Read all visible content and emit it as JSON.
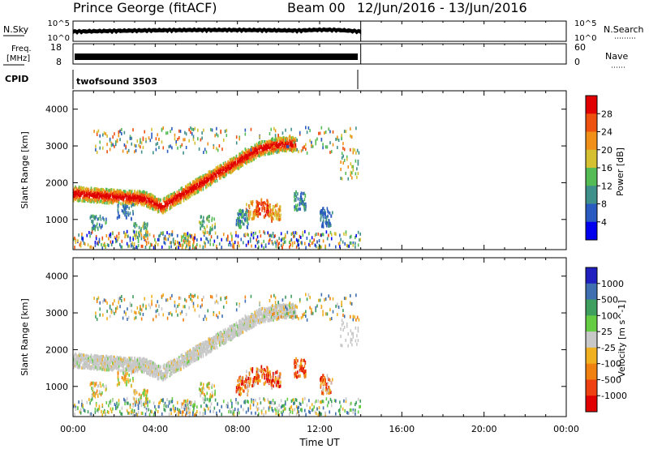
{
  "header": {
    "station": "Prince George (fitACF)",
    "beam": "Beam 00",
    "date_range": "12/Jun/2016 - 13/Jun/2016"
  },
  "panels": {
    "nsky": {
      "label": "N.Sky",
      "ticks": [
        "10^5",
        "10^0"
      ],
      "right_label": "N.Search",
      "right_ticks": [
        "10^5",
        "10^0"
      ]
    },
    "freq": {
      "label_line1": "Freq.",
      "label_line2": "[MHz]",
      "ticks": [
        "18",
        "8"
      ],
      "right_label": "Nave",
      "right_ticks": [
        "60",
        "0"
      ]
    },
    "cpid": {
      "label": "CPID",
      "value": "twofsound 3503"
    }
  },
  "chart_data": [
    {
      "type": "heatmap",
      "title": "",
      "xlabel": "Time UT",
      "ylabel": "Slant Range [km]",
      "xlim": [
        0,
        24
      ],
      "ylim": [
        180,
        4500
      ],
      "x_ticks": [
        "00:00",
        "04:00",
        "08:00",
        "12:00",
        "16:00",
        "20:00",
        "00:00"
      ],
      "y_ticks": [
        "1000",
        "2000",
        "3000",
        "4000"
      ],
      "colorbar": {
        "label": "Power [dB]",
        "ticks": [
          "4",
          "8",
          "12",
          "16",
          "20",
          "24",
          "28"
        ],
        "colors": [
          "#0000ee",
          "#2a5bc0",
          "#3f8f8a",
          "#55bb55",
          "#d4c030",
          "#f09018",
          "#ee5010",
          "#e00000"
        ]
      },
      "data_extent_hours": [
        0,
        14
      ]
    },
    {
      "type": "heatmap",
      "title": "",
      "xlabel": "Time UT",
      "ylabel": "Slant Range [km]",
      "xlim": [
        0,
        24
      ],
      "ylim": [
        180,
        4500
      ],
      "x_ticks": [
        "00:00",
        "04:00",
        "08:00",
        "12:00",
        "16:00",
        "20:00",
        "00:00"
      ],
      "y_ticks": [
        "1000",
        "2000",
        "3000",
        "4000"
      ],
      "colorbar": {
        "label": "Velocity [m s^-1]",
        "ticks": [
          "1000",
          "500",
          "100",
          "25",
          "-25",
          "-100",
          "-500",
          "-1000"
        ],
        "colors": [
          "#2020c0",
          "#3f6fb0",
          "#3f9f5f",
          "#66cc44",
          "#c8c8c8",
          "#f0b020",
          "#f08010",
          "#ee4010",
          "#e00000"
        ]
      },
      "data_extent_hours": [
        0,
        14
      ]
    }
  ]
}
